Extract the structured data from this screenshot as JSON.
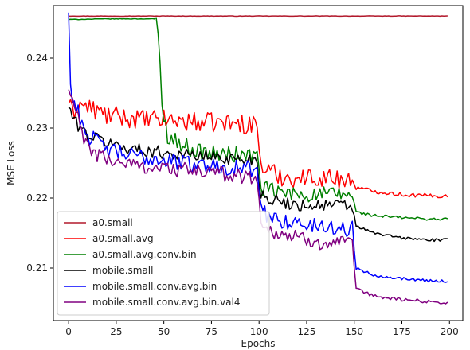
{
  "chart_data": {
    "type": "line",
    "title": "",
    "xlabel": "Epochs",
    "ylabel": "MSE Loss",
    "xlim": [
      -8,
      207
    ],
    "ylim": [
      0.2025,
      0.2475
    ],
    "x_ticks": [
      0,
      25,
      50,
      75,
      100,
      125,
      150,
      175,
      200
    ],
    "y_ticks": [
      0.21,
      0.22,
      0.23,
      0.24
    ],
    "y_tick_labels": [
      "0.21",
      "0.22",
      "0.23",
      "0.24"
    ],
    "grid": false,
    "legend_position": "lower-left",
    "series": [
      {
        "name": "a0.small",
        "color": "#b2182b",
        "anchors": [
          [
            0,
            0.246
          ],
          [
            199,
            0.246
          ]
        ],
        "noise": 3e-05
      },
      {
        "name": "a0.small.avg",
        "color": "#ff0000",
        "anchors": [
          [
            0,
            0.2335
          ],
          [
            2,
            0.232
          ],
          [
            5,
            0.2335
          ],
          [
            10,
            0.233
          ],
          [
            20,
            0.2318
          ],
          [
            30,
            0.2315
          ],
          [
            40,
            0.2312
          ],
          [
            50,
            0.2312
          ],
          [
            60,
            0.231
          ],
          [
            70,
            0.2308
          ],
          [
            80,
            0.2308
          ],
          [
            90,
            0.2306
          ],
          [
            99,
            0.2305
          ],
          [
            101,
            0.2245
          ],
          [
            110,
            0.2232
          ],
          [
            120,
            0.2228
          ],
          [
            130,
            0.223
          ],
          [
            140,
            0.2228
          ],
          [
            149,
            0.2225
          ],
          [
            151,
            0.2215
          ],
          [
            160,
            0.221
          ],
          [
            175,
            0.2205
          ],
          [
            190,
            0.2203
          ],
          [
            199,
            0.2203
          ]
        ],
        "noise": 0.0014,
        "noise_late": 0.0003
      },
      {
        "name": "a0.small.avg.conv.bin",
        "color": "#008000",
        "anchors": [
          [
            0,
            0.2455
          ],
          [
            20,
            0.2456
          ],
          [
            44,
            0.2456
          ],
          [
            46,
            0.2455
          ],
          [
            48,
            0.24
          ],
          [
            49,
            0.233
          ],
          [
            52,
            0.229
          ],
          [
            60,
            0.2275
          ],
          [
            70,
            0.2265
          ],
          [
            80,
            0.2262
          ],
          [
            90,
            0.2262
          ],
          [
            99,
            0.226
          ],
          [
            101,
            0.2215
          ],
          [
            110,
            0.2208
          ],
          [
            120,
            0.2205
          ],
          [
            130,
            0.2205
          ],
          [
            140,
            0.2205
          ],
          [
            149,
            0.2205
          ],
          [
            151,
            0.218
          ],
          [
            160,
            0.2175
          ],
          [
            175,
            0.2172
          ],
          [
            190,
            0.217
          ],
          [
            199,
            0.217
          ]
        ],
        "noise": 0.0012,
        "noise_early": 4e-05,
        "noise_late": 0.0002
      },
      {
        "name": "mobile.small",
        "color": "#000000",
        "anchors": [
          [
            0,
            0.233
          ],
          [
            3,
            0.231
          ],
          [
            10,
            0.229
          ],
          [
            20,
            0.228
          ],
          [
            30,
            0.2272
          ],
          [
            40,
            0.2268
          ],
          [
            50,
            0.2265
          ],
          [
            60,
            0.2262
          ],
          [
            70,
            0.226
          ],
          [
            80,
            0.2258
          ],
          [
            90,
            0.2255
          ],
          [
            99,
            0.2255
          ],
          [
            101,
            0.2205
          ],
          [
            110,
            0.2195
          ],
          [
            120,
            0.219
          ],
          [
            130,
            0.219
          ],
          [
            140,
            0.219
          ],
          [
            149,
            0.2188
          ],
          [
            151,
            0.216
          ],
          [
            160,
            0.215
          ],
          [
            175,
            0.2143
          ],
          [
            190,
            0.214
          ],
          [
            199,
            0.214
          ]
        ],
        "noise": 0.0009,
        "noise_late": 0.0002
      },
      {
        "name": "mobile.small.conv.avg.bin",
        "color": "#0000ff",
        "anchors": [
          [
            0,
            0.2465
          ],
          [
            1,
            0.236
          ],
          [
            3,
            0.2335
          ],
          [
            10,
            0.229
          ],
          [
            20,
            0.227
          ],
          [
            30,
            0.2262
          ],
          [
            40,
            0.2258
          ],
          [
            50,
            0.2255
          ],
          [
            60,
            0.225
          ],
          [
            70,
            0.2248
          ],
          [
            80,
            0.2245
          ],
          [
            90,
            0.2243
          ],
          [
            99,
            0.224
          ],
          [
            101,
            0.218
          ],
          [
            110,
            0.217
          ],
          [
            120,
            0.2163
          ],
          [
            130,
            0.216
          ],
          [
            140,
            0.2158
          ],
          [
            149,
            0.2155
          ],
          [
            151,
            0.21
          ],
          [
            160,
            0.209
          ],
          [
            175,
            0.2085
          ],
          [
            190,
            0.2082
          ],
          [
            199,
            0.2081
          ]
        ],
        "noise": 0.0012,
        "noise_late": 0.0002
      },
      {
        "name": "mobile.small.conv.avg.bin.val4",
        "color": "#800080",
        "anchors": [
          [
            0,
            0.2355
          ],
          [
            3,
            0.233
          ],
          [
            10,
            0.227
          ],
          [
            20,
            0.2255
          ],
          [
            30,
            0.225
          ],
          [
            40,
            0.2245
          ],
          [
            50,
            0.2243
          ],
          [
            60,
            0.224
          ],
          [
            70,
            0.2238
          ],
          [
            80,
            0.2235
          ],
          [
            90,
            0.2232
          ],
          [
            99,
            0.223
          ],
          [
            101,
            0.216
          ],
          [
            110,
            0.215
          ],
          [
            120,
            0.2143
          ],
          [
            130,
            0.2138
          ],
          [
            140,
            0.2135
          ],
          [
            149,
            0.2133
          ],
          [
            151,
            0.207
          ],
          [
            160,
            0.206
          ],
          [
            175,
            0.2055
          ],
          [
            190,
            0.2052
          ],
          [
            199,
            0.205
          ]
        ],
        "noise": 0.0011,
        "noise_late": 0.00025
      }
    ]
  }
}
